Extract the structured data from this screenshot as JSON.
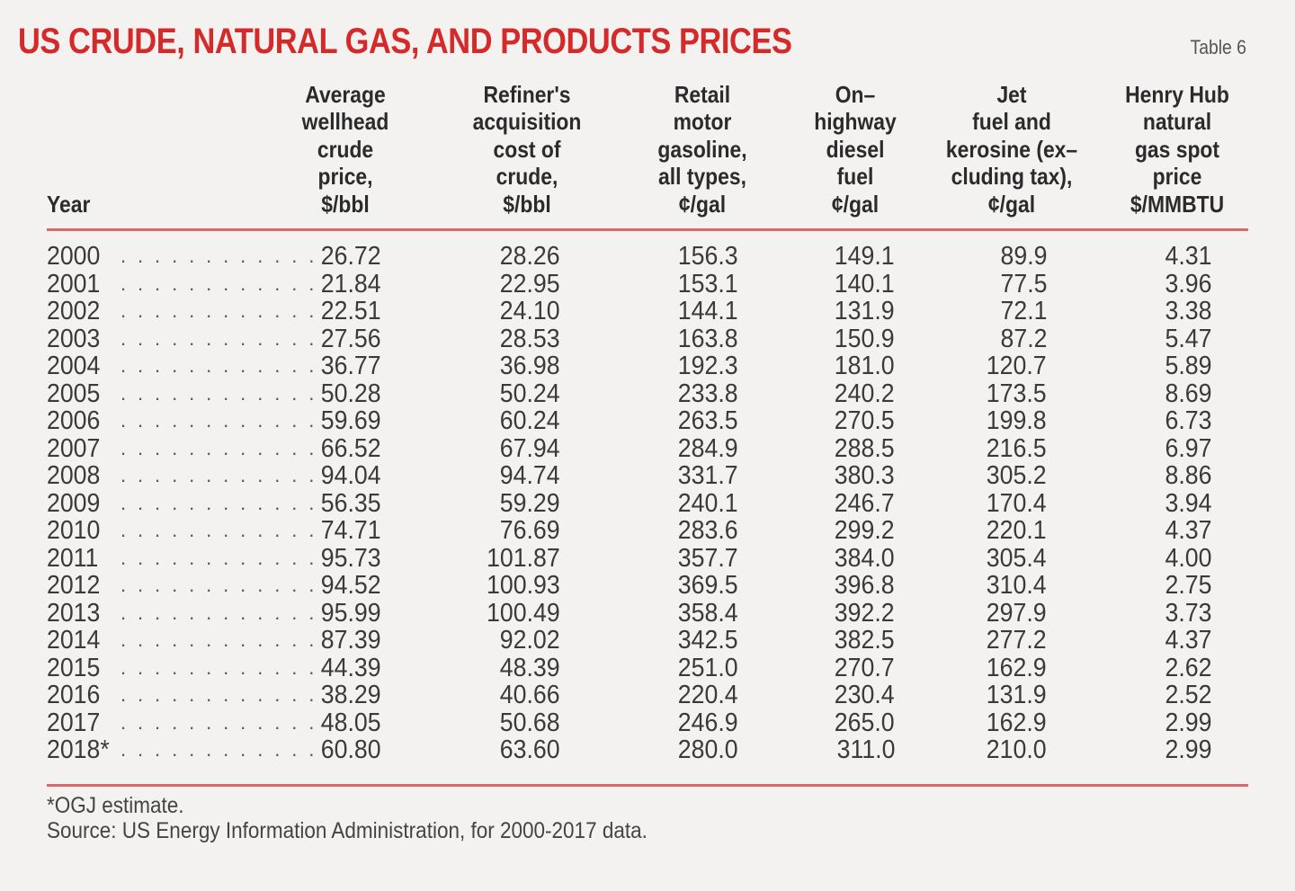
{
  "title": "US CRUDE, NATURAL GAS, AND PRODUCTS PRICES",
  "table_label": "Table 6",
  "columns": [
    {
      "key": "year",
      "lines": [
        "Year"
      ]
    },
    {
      "key": "wellhead",
      "lines": [
        "Average",
        "wellhead",
        "crude",
        "price,",
        "$/bbl"
      ]
    },
    {
      "key": "refiner",
      "lines": [
        "Refiner's",
        "acquisition",
        "cost of",
        "crude,",
        "$/bbl"
      ]
    },
    {
      "key": "gasoline",
      "lines": [
        "Retail",
        "motor",
        "gasoline,",
        "all types,",
        "¢/gal"
      ]
    },
    {
      "key": "diesel",
      "lines": [
        "On–",
        "highway",
        "diesel",
        "fuel",
        "¢/gal"
      ]
    },
    {
      "key": "jet",
      "lines": [
        "Jet",
        "fuel and",
        "kerosine (ex–",
        "cluding tax),",
        "¢/gal"
      ]
    },
    {
      "key": "henryhub",
      "lines": [
        "Henry Hub",
        "natural",
        "gas spot",
        "price",
        "$/MMBTU"
      ]
    }
  ],
  "leader_dots": ". . . . . . . . . . . .",
  "rows": [
    [
      "2000",
      "26.72",
      "28.26",
      "156.3",
      "149.1",
      "89.9",
      "4.31"
    ],
    [
      "2001",
      "21.84",
      "22.95",
      "153.1",
      "140.1",
      "77.5",
      "3.96"
    ],
    [
      "2002",
      "22.51",
      "24.10",
      "144.1",
      "131.9",
      "72.1",
      "3.38"
    ],
    [
      "2003",
      "27.56",
      "28.53",
      "163.8",
      "150.9",
      "87.2",
      "5.47"
    ],
    [
      "2004",
      "36.77",
      "36.98",
      "192.3",
      "181.0",
      "120.7",
      "5.89"
    ],
    [
      "2005",
      "50.28",
      "50.24",
      "233.8",
      "240.2",
      "173.5",
      "8.69"
    ],
    [
      "2006",
      "59.69",
      "60.24",
      "263.5",
      "270.5",
      "199.8",
      "6.73"
    ],
    [
      "2007",
      "66.52",
      "67.94",
      "284.9",
      "288.5",
      "216.5",
      "6.97"
    ],
    [
      "2008",
      "94.04",
      "94.74",
      "331.7",
      "380.3",
      "305.2",
      "8.86"
    ],
    [
      "2009",
      "56.35",
      "59.29",
      "240.1",
      "246.7",
      "170.4",
      "3.94"
    ],
    [
      "2010",
      "74.71",
      "76.69",
      "283.6",
      "299.2",
      "220.1",
      "4.37"
    ],
    [
      "2011",
      "95.73",
      "101.87",
      "357.7",
      "384.0",
      "305.4",
      "4.00"
    ],
    [
      "2012",
      "94.52",
      "100.93",
      "369.5",
      "396.8",
      "310.4",
      "2.75"
    ],
    [
      "2013",
      "95.99",
      "100.49",
      "358.4",
      "392.2",
      "297.9",
      "3.73"
    ],
    [
      "2014",
      "87.39",
      "92.02",
      "342.5",
      "382.5",
      "277.2",
      "4.37"
    ],
    [
      "2015",
      "44.39",
      "48.39",
      "251.0",
      "270.7",
      "162.9",
      "2.62"
    ],
    [
      "2016",
      "38.29",
      "40.66",
      "220.4",
      "230.4",
      "131.9",
      "2.52"
    ],
    [
      "2017",
      "48.05",
      "50.68",
      "246.9",
      "265.0",
      "162.9",
      "2.99"
    ],
    [
      "2018*",
      "60.80",
      "63.60",
      "280.0",
      "311.0",
      "210.0",
      "2.99"
    ]
  ],
  "footnotes": [
    "*OGJ estimate.",
    "Source: US Energy Information Administration, for 2000-2017 data."
  ],
  "colors": {
    "title": "#d42a2a",
    "rule": "#d9696b",
    "background": "#f4f2f1"
  }
}
